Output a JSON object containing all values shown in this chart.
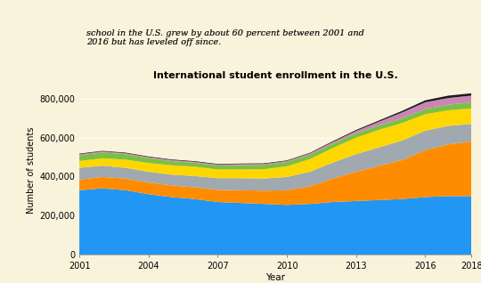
{
  "title": "International student enrollment in the U.S.",
  "xlabel": "Year",
  "ylabel": "Number of students",
  "background_color": "#faf3dc",
  "top_panel_color": "#cce8f0",
  "years": [
    2001,
    2002,
    2003,
    2004,
    2005,
    2006,
    2007,
    2008,
    2009,
    2010,
    2011,
    2012,
    2013,
    2014,
    2015,
    2016,
    2017,
    2018
  ],
  "layers": {
    "blue": [
      330000,
      340000,
      330000,
      310000,
      295000,
      285000,
      270000,
      265000,
      260000,
      255000,
      260000,
      270000,
      275000,
      280000,
      285000,
      295000,
      300000,
      300000
    ],
    "orange": [
      55000,
      58000,
      60000,
      60000,
      60000,
      60000,
      62000,
      65000,
      68000,
      75000,
      90000,
      120000,
      150000,
      175000,
      200000,
      240000,
      265000,
      280000
    ],
    "gray": [
      60000,
      58000,
      55000,
      55000,
      55000,
      58000,
      60000,
      62000,
      62000,
      68000,
      75000,
      82000,
      90000,
      95000,
      100000,
      100000,
      95000,
      90000
    ],
    "yellow": [
      35000,
      38000,
      42000,
      45000,
      48000,
      48000,
      45000,
      45000,
      48000,
      55000,
      65000,
      75000,
      85000,
      90000,
      90000,
      85000,
      80000,
      80000
    ],
    "green": [
      30000,
      30000,
      28000,
      25000,
      22000,
      20000,
      20000,
      22000,
      22000,
      22000,
      22000,
      22000,
      22000,
      22000,
      24000,
      26000,
      28000,
      30000
    ],
    "purple": [
      5000,
      5000,
      5000,
      5000,
      5000,
      5000,
      5000,
      5000,
      5000,
      5000,
      7000,
      9000,
      12000,
      20000,
      30000,
      35000,
      35000,
      35000
    ],
    "black": [
      3000,
      3000,
      3000,
      3000,
      3000,
      3000,
      3000,
      3000,
      3000,
      3000,
      3000,
      4000,
      5000,
      6000,
      8000,
      10000,
      12000,
      12000
    ]
  },
  "colors": [
    "#2196f3",
    "#ff8c00",
    "#a0a8b0",
    "#ffd700",
    "#7bc043",
    "#c986b5",
    "#1a1a1a"
  ],
  "yticks": [
    0,
    200000,
    400000,
    600000,
    800000
  ],
  "ytick_labels": [
    "0",
    "200,000",
    "400,000",
    "600,000",
    "800,000"
  ],
  "xticks": [
    2001,
    2004,
    2007,
    2010,
    2013,
    2016,
    2018
  ],
  "ylim": [
    0,
    870000
  ],
  "subtitle_line1": "school in the U.S. grew by about 60 percent between 2001 and",
  "subtitle_line2": "2016 but has leveled off since."
}
